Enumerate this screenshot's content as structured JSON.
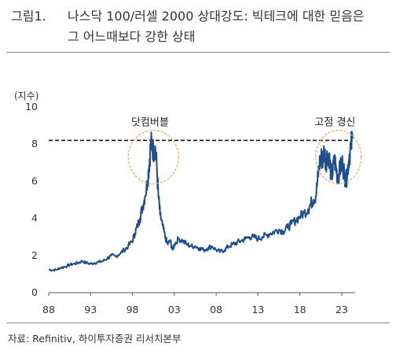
{
  "figure": {
    "number": "그림1.",
    "title_line1": "나스닥 100/러셀 2000 상대강도: 빅테크에 대한 믿음은",
    "title_line2": "그 어느때보다 강한 상태",
    "source": "자료: Refinitiv, 하이투자증권 리서치본부"
  },
  "chart_data": {
    "type": "line",
    "ylabel": "(지수)",
    "ylim": [
      0,
      10
    ],
    "yticks": [
      "0",
      "2",
      "4",
      "6",
      "8",
      "10"
    ],
    "xlim": [
      1988.0,
      2024.6
    ],
    "xticks": [
      "88",
      "93",
      "98",
      "03",
      "08",
      "13",
      "18",
      "23"
    ],
    "reference_line": {
      "y": 8.2,
      "style": "dashed",
      "color": "#000000"
    },
    "annotations": [
      {
        "text": "닷컴버블",
        "x": 2000.2,
        "y": 7.3
      },
      {
        "text": "고점 경신",
        "x": 2022.6,
        "y": 7.6
      }
    ],
    "series": [
      {
        "color": "#1f4e8c",
        "x": [
          1988.0,
          1988.5,
          1989.0,
          1989.5,
          1990.0,
          1990.5,
          1991.0,
          1991.5,
          1992.0,
          1992.5,
          1993.0,
          1993.5,
          1994.0,
          1994.5,
          1995.0,
          1995.5,
          1996.0,
          1996.5,
          1997.0,
          1997.5,
          1998.0,
          1998.3,
          1998.6,
          1998.9,
          1999.2,
          1999.5,
          1999.8,
          2000.0,
          2000.15,
          2000.3,
          2000.5,
          2000.7,
          2000.9,
          2001.1,
          2001.3,
          2001.6,
          2001.9,
          2002.2,
          2002.5,
          2002.8,
          2003.0,
          2003.5,
          2004.0,
          2004.5,
          2005.0,
          2005.5,
          2006.0,
          2006.5,
          2007.0,
          2007.5,
          2008.0,
          2008.5,
          2009.0,
          2009.5,
          2010.0,
          2010.5,
          2011.0,
          2011.5,
          2012.0,
          2012.5,
          2013.0,
          2013.5,
          2014.0,
          2014.5,
          2015.0,
          2015.5,
          2016.0,
          2016.5,
          2017.0,
          2017.5,
          2018.0,
          2018.5,
          2019.0,
          2019.3,
          2019.6,
          2019.9,
          2020.1,
          2020.3,
          2020.5,
          2020.7,
          2020.9,
          2021.1,
          2021.3,
          2021.5,
          2021.7,
          2021.9,
          2022.1,
          2022.3,
          2022.5,
          2022.7,
          2022.9,
          2023.1,
          2023.3,
          2023.5,
          2023.7,
          2023.9,
          2024.1,
          2024.3
        ],
        "values": [
          1.25,
          1.2,
          1.25,
          1.35,
          1.4,
          1.5,
          1.55,
          1.6,
          1.7,
          1.6,
          1.55,
          1.6,
          1.65,
          1.7,
          1.85,
          2.0,
          1.95,
          2.1,
          2.3,
          2.5,
          2.8,
          3.2,
          3.6,
          4.0,
          4.6,
          5.2,
          6.0,
          6.9,
          7.8,
          8.1,
          7.6,
          7.9,
          6.8,
          5.2,
          4.2,
          3.6,
          3.0,
          2.6,
          2.8,
          2.3,
          2.6,
          2.9,
          2.8,
          2.6,
          2.5,
          2.5,
          2.4,
          2.3,
          2.4,
          2.5,
          2.3,
          2.2,
          2.3,
          2.5,
          2.6,
          2.7,
          2.8,
          2.9,
          3.0,
          3.0,
          2.9,
          3.0,
          3.1,
          3.2,
          3.3,
          3.4,
          3.3,
          3.5,
          3.7,
          3.9,
          4.1,
          4.3,
          4.5,
          4.8,
          5.0,
          5.2,
          6.0,
          6.8,
          7.4,
          7.0,
          7.7,
          7.0,
          7.5,
          7.3,
          6.5,
          6.3,
          7.2,
          6.8,
          6.2,
          6.5,
          6.8,
          7.0,
          6.4,
          6.0,
          6.6,
          7.4,
          7.9,
          8.3
        ]
      }
    ]
  },
  "colors": {
    "line": "#1f4e8c",
    "highlight": "#f4a261"
  }
}
